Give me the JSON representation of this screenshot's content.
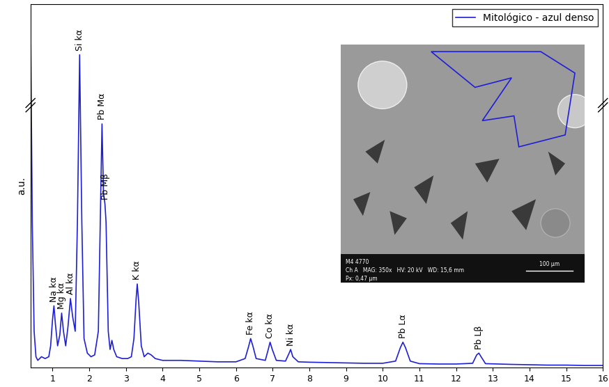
{
  "chart_data": {
    "type": "line",
    "y_label": "a.u.",
    "x": [
      0.4,
      0.45,
      0.5,
      0.55,
      0.6,
      0.7,
      0.8,
      0.9,
      0.95,
      1.0,
      1.04,
      1.08,
      1.14,
      1.2,
      1.25,
      1.3,
      1.36,
      1.42,
      1.49,
      1.55,
      1.62,
      1.68,
      1.74,
      1.8,
      1.86,
      1.95,
      2.05,
      2.15,
      2.25,
      2.32,
      2.35,
      2.39,
      2.43,
      2.46,
      2.52,
      2.57,
      2.62,
      2.67,
      2.75,
      2.9,
      3.05,
      3.15,
      3.22,
      3.28,
      3.31,
      3.35,
      3.42,
      3.5,
      3.6,
      3.69,
      3.8,
      4.0,
      4.5,
      5.0,
      5.5,
      6.0,
      6.25,
      6.35,
      6.4,
      6.46,
      6.55,
      6.8,
      6.88,
      6.93,
      6.99,
      7.1,
      7.35,
      7.45,
      7.49,
      7.55,
      7.7,
      8.0,
      8.5,
      9.0,
      9.5,
      10.0,
      10.35,
      10.48,
      10.55,
      10.62,
      10.75,
      11.0,
      11.5,
      12.0,
      12.45,
      12.56,
      12.62,
      12.68,
      12.8,
      13.5,
      14.0,
      14.5,
      15.0,
      15.5,
      16.0
    ],
    "series": [
      {
        "name": "Mitológico - azul denso",
        "color": "#1f1fd6",
        "values": [
          100,
          40,
          10,
          3,
          2,
          3,
          2.5,
          3,
          6,
          13,
          17,
          12,
          6,
          9,
          15,
          10,
          6,
          11,
          19,
          14,
          10,
          40,
          86,
          40,
          8,
          4,
          3,
          3.5,
          10,
          50,
          67,
          48,
          45,
          40,
          10,
          5,
          7.5,
          5,
          3,
          2.5,
          2.5,
          3,
          8,
          19,
          23,
          18,
          6,
          3,
          4,
          3.5,
          2.5,
          2,
          2,
          1.8,
          1.6,
          1.6,
          2.5,
          6,
          8,
          6,
          2.5,
          2,
          5,
          7,
          5,
          2,
          1.8,
          4,
          5,
          3,
          1.6,
          1.5,
          1.4,
          1.3,
          1.2,
          1.2,
          1.8,
          5.5,
          7,
          5.5,
          1.8,
          1.1,
          1.0,
          1.0,
          1.2,
          3.5,
          4,
          3,
          1.1,
          0.9,
          0.8,
          0.7,
          0.7,
          0.6,
          0.6
        ]
      }
    ],
    "xlim": [
      0.4,
      16
    ],
    "xticks": [
      1,
      2,
      3,
      4,
      5,
      6,
      7,
      8,
      9,
      10,
      11,
      12,
      13,
      14,
      15,
      16
    ],
    "ylim": [
      0,
      100
    ],
    "tick_labels": "x",
    "legend": "upper right",
    "annotations": [
      {
        "text": "Na kα",
        "x": 1.04
      },
      {
        "text": "Mg kα",
        "x": 1.25
      },
      {
        "text": "Al kα",
        "x": 1.49
      },
      {
        "text": "Si kα",
        "x": 1.74
      },
      {
        "text": "Pb Mα",
        "x": 2.35
      },
      {
        "text": "Pb Mβ",
        "x": 2.44
      },
      {
        "text": "K kα",
        "x": 3.31
      },
      {
        "text": "Fe kα",
        "x": 6.4
      },
      {
        "text": "Co kα",
        "x": 6.93
      },
      {
        "text": "Ni kα",
        "x": 7.49
      },
      {
        "text": "Pb Lα",
        "x": 10.55
      },
      {
        "text": "Pb Lβ",
        "x": 12.62
      }
    ],
    "inset_texts": [
      "M4 4770",
      "Ch A   MAG: 350x   HV: 20 kV   WD: 15,6 mm",
      "Px: 0,47 µm"
    ],
    "inset_scale_bar": "100 µm"
  }
}
